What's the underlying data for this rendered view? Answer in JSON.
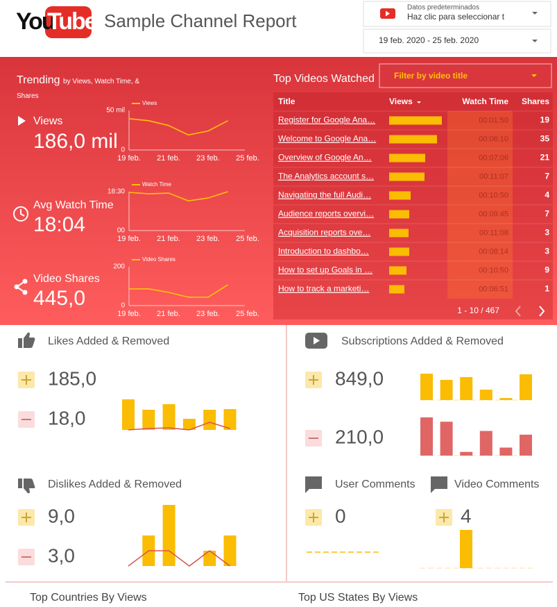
{
  "header": {
    "logo_you": "You",
    "logo_tube": "Tube",
    "title": "Sample Channel Report",
    "account_label": "Datos predeterminados",
    "account_hint": "Haz clic para seleccionar t",
    "date_range": "19 feb. 2020 - 25 feb. 2020"
  },
  "trending": {
    "title": "Trending",
    "subtitle": "by Views, Watch Time, & Shares"
  },
  "metrics": [
    {
      "label": "Views",
      "value": "186,0 mil"
    },
    {
      "label": "Avg Watch Time",
      "value": "18:04"
    },
    {
      "label": "Video Shares",
      "value": "445,0"
    }
  ],
  "table": {
    "title": "Top Videos Watched",
    "filter": "Filter by video title",
    "columns": [
      "Title",
      "Views",
      "Watch Time",
      "Shares"
    ],
    "rows": [
      {
        "title": "Register for Google Ana…",
        "views": 7600,
        "watch_time": "00:01:50",
        "shares": 19
      },
      {
        "title": "Welcome to Google Ana…",
        "views": 6900,
        "watch_time": "00:06:10",
        "shares": 35
      },
      {
        "title": "Overview of Google An…",
        "views": 5200,
        "watch_time": "00:07:06",
        "shares": 21
      },
      {
        "title": "The Analytics account s…",
        "views": 5100,
        "watch_time": "00:11:07",
        "shares": 7
      },
      {
        "title": "Navigating the full Audi…",
        "views": 3100,
        "watch_time": "00:10:50",
        "shares": 4
      },
      {
        "title": "Audience reports overvi…",
        "views": 2900,
        "watch_time": "00:09:45",
        "shares": 7
      },
      {
        "title": "Acquisition reports ove…",
        "views": 2800,
        "watch_time": "00:11:08",
        "shares": 3
      },
      {
        "title": "Introduction to dashbo…",
        "views": 2900,
        "watch_time": "00:08:14",
        "shares": 3
      },
      {
        "title": "How to set up Goals in …",
        "views": 2500,
        "watch_time": "00:10:50",
        "shares": 9
      },
      {
        "title": "How to track a marketi…",
        "views": 2200,
        "watch_time": "00:06:51",
        "shares": 1
      }
    ],
    "pagination": "1 - 10 / 467"
  },
  "panels": [
    {
      "title": "Likes Added & Removed",
      "added": "185,0",
      "removed": "18,0"
    },
    {
      "title": "Dislikes Added & Removed",
      "added": "9,0",
      "removed": "3,0"
    },
    {
      "title": "Subscriptions Added & Removed",
      "added": "849,0",
      "removed": "210,0"
    },
    {
      "title": "User Comments",
      "added": "0"
    },
    {
      "title": "Video Comments",
      "added": "4"
    }
  ],
  "footer": [
    "Top Countries By Views",
    "Top US States By Views"
  ],
  "chart_data": [
    {
      "type": "line",
      "categories": [
        "19 feb.",
        null,
        "21 feb.",
        null,
        "23 feb.",
        null,
        "25 feb."
      ],
      "series": [
        {
          "name": "Views",
          "color": "#ffc107",
          "values": [
            39500,
            37000,
            31000,
            19000,
            24000,
            37000,
            null
          ]
        }
      ],
      "ylim": [
        0,
        50000
      ],
      "yticks": [
        {
          "value": 50000,
          "label": "50 mil"
        },
        0
      ]
    },
    {
      "type": "line",
      "categories": [
        "19 feb.",
        null,
        "21 feb.",
        null,
        "23 feb.",
        null,
        "25 feb."
      ],
      "series": [
        {
          "name": "Watch Time",
          "color": "#ffc107",
          "values": [
            1090,
            1050,
            1070,
            850,
            930,
            1110,
            null
          ]
        }
      ],
      "ylim": [
        0,
        1110
      ],
      "yticks": [
        {
          "value": 1110,
          "label": "18:30"
        },
        {
          "value": 0,
          "label": "00"
        }
      ]
    },
    {
      "type": "line",
      "categories": [
        "19 feb.",
        null,
        "21 feb.",
        null,
        "23 feb.",
        null,
        "25 feb."
      ],
      "series": [
        {
          "name": "Video Shares",
          "color": "#ffc107",
          "values": [
            86,
            86,
            68,
            43,
            43,
            107,
            null
          ]
        }
      ],
      "ylim": [
        0,
        200
      ],
      "yticks": [
        200,
        0
      ]
    },
    {
      "type": "combo",
      "series": [
        {
          "kind": "bar",
          "color": "#fbbc04",
          "values": [
            44,
            29,
            37,
            16,
            29,
            30
          ]
        },
        {
          "kind": "line",
          "color": "#d9534f",
          "values": [
            0,
            2,
            3,
            0,
            11,
            2
          ]
        }
      ]
    },
    {
      "type": "combo",
      "series": [
        {
          "kind": "bar",
          "color": "#fbbc04",
          "values": [
            0,
            2,
            4,
            0,
            1,
            2
          ]
        },
        {
          "kind": "line",
          "color": "#d9534f",
          "values": [
            0,
            1,
            1,
            0,
            1,
            0
          ]
        }
      ]
    },
    {
      "type": "bar",
      "series": [
        {
          "color": "#fbbc04",
          "values": [
            208,
            159,
            181,
            82,
            16,
            203
          ]
        }
      ]
    },
    {
      "type": "bar",
      "series": [
        {
          "color": "#e06666",
          "values": [
            62,
            55,
            6,
            40,
            13,
            34
          ]
        }
      ]
    },
    {
      "type": "line",
      "line_style": "dashed",
      "series": [
        {
          "color": "#fbbc04",
          "values": [
            0,
            0,
            0,
            0,
            0,
            0
          ]
        }
      ]
    },
    {
      "type": "bar",
      "series": [
        {
          "color": "#fbbc04",
          "values": [
            0,
            0,
            4,
            0,
            0,
            0
          ]
        }
      ]
    }
  ]
}
